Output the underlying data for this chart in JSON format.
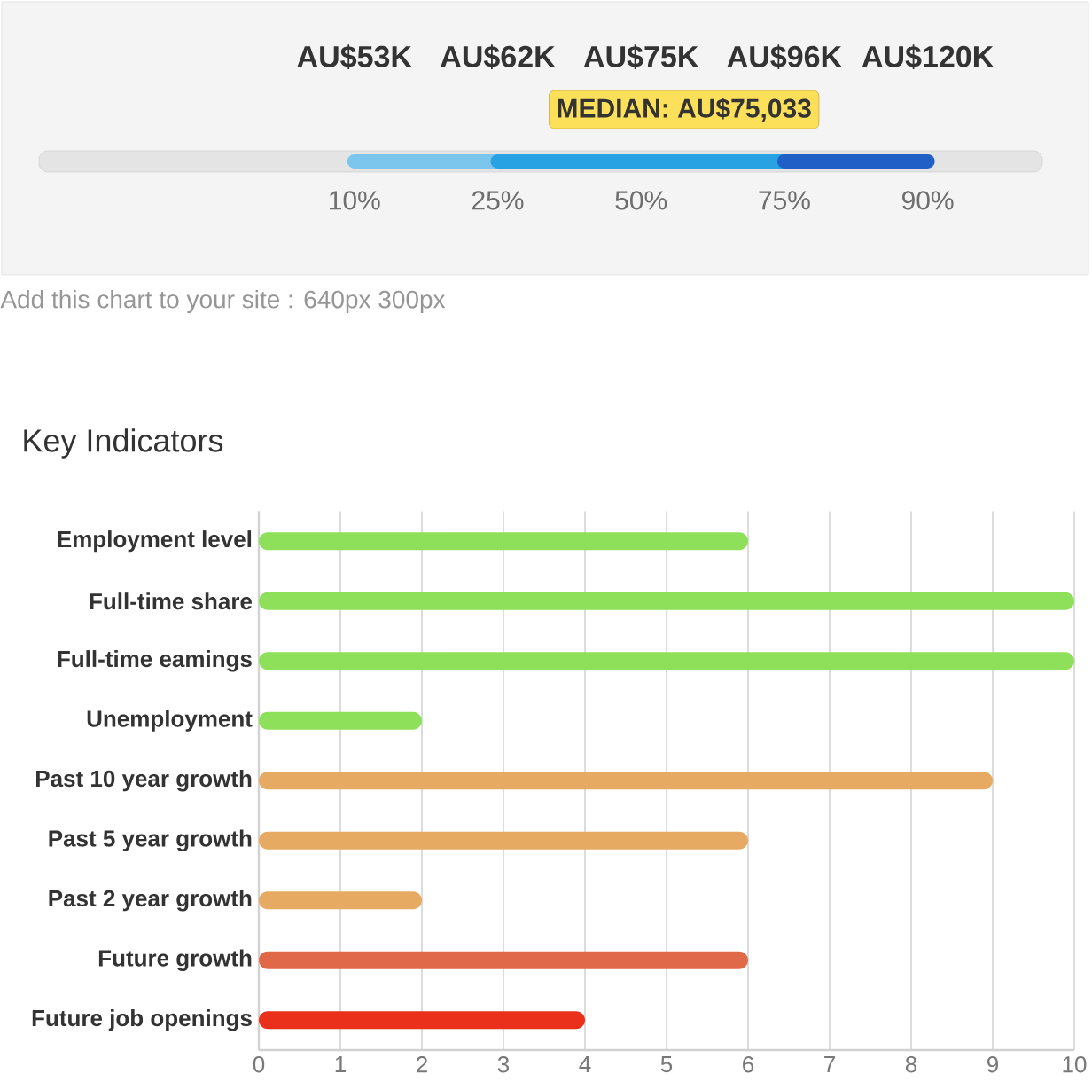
{
  "chart_data": [
    {
      "type": "other",
      "categories": [
        "10%",
        "25%",
        "50%",
        "75%",
        "90%"
      ],
      "value_labels": [
        "AU$53K",
        "AU$62K",
        "AU$75K",
        "AU$96K",
        "AU$120K"
      ],
      "annotations": [
        "MEDIAN: AU$75,033",
        "Add this chart to your site : 640px   300px"
      ]
    },
    {
      "type": "bar",
      "orientation": "horizontal",
      "title": "Key Indicators",
      "categories": [
        "Employment level",
        "Full-time share",
        "Full-time eamings",
        "Unemployment",
        "Past 10 year growth",
        "Past 5 year growth",
        "Past 2 year growth",
        "Future growth",
        "Future job openings"
      ],
      "values": [
        6,
        10,
        10,
        2,
        9,
        6,
        2,
        6,
        4
      ],
      "colors": [
        "#8ee05a",
        "#8ee05a",
        "#8ee05a",
        "#8ee05a",
        "#e6aa62",
        "#e6aa62",
        "#e6aa62",
        "#e0694a",
        "#ea2f1a"
      ],
      "xlim": [
        0,
        10
      ],
      "xticks": [
        0,
        1,
        2,
        3,
        4,
        5,
        6,
        7,
        8,
        9,
        10
      ],
      "grid": "x"
    }
  ]
}
